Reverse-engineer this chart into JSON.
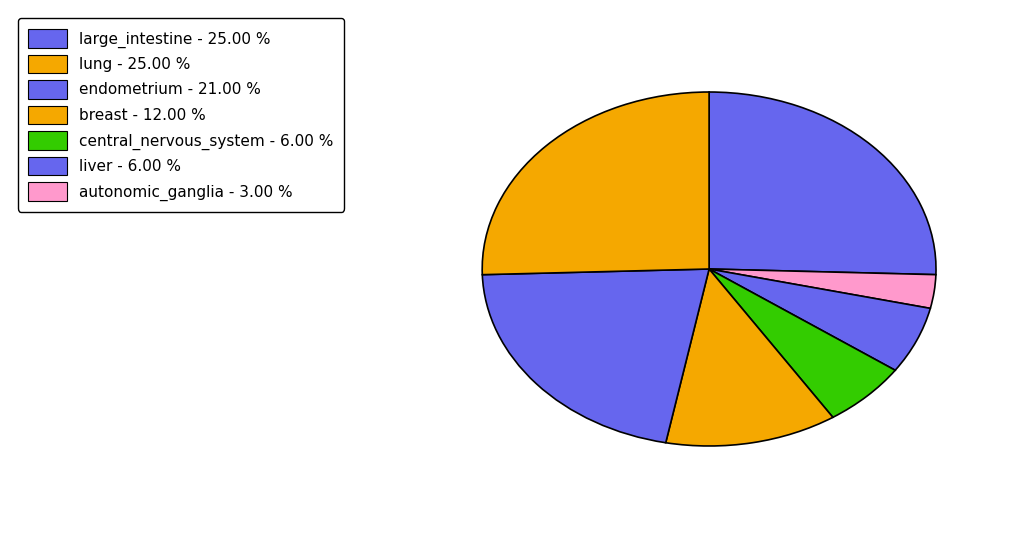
{
  "labels": [
    "large_intestine",
    "autonomic_ganglia",
    "liver",
    "central_nervous_system",
    "breast",
    "endometrium",
    "lung"
  ],
  "values": [
    25.0,
    3.0,
    6.0,
    6.0,
    12.0,
    21.0,
    25.0
  ],
  "colors": [
    "#6666ee",
    "#ff99cc",
    "#6666ee",
    "#33cc00",
    "#f5a800",
    "#6666ee",
    "#f5a800"
  ],
  "legend_labels": [
    "large_intestine - 25.00 %",
    "lung - 25.00 %",
    "endometrium - 21.00 %",
    "breast - 12.00 %",
    "central_nervous_system - 6.00 %",
    "liver - 6.00 %",
    "autonomic_ganglia - 3.00 %"
  ],
  "legend_colors": [
    "#6666ee",
    "#f5a800",
    "#6666ee",
    "#f5a800",
    "#33cc00",
    "#6666ee",
    "#ff99cc"
  ],
  "figsize": [
    10.13,
    5.38
  ],
  "dpi": 100
}
